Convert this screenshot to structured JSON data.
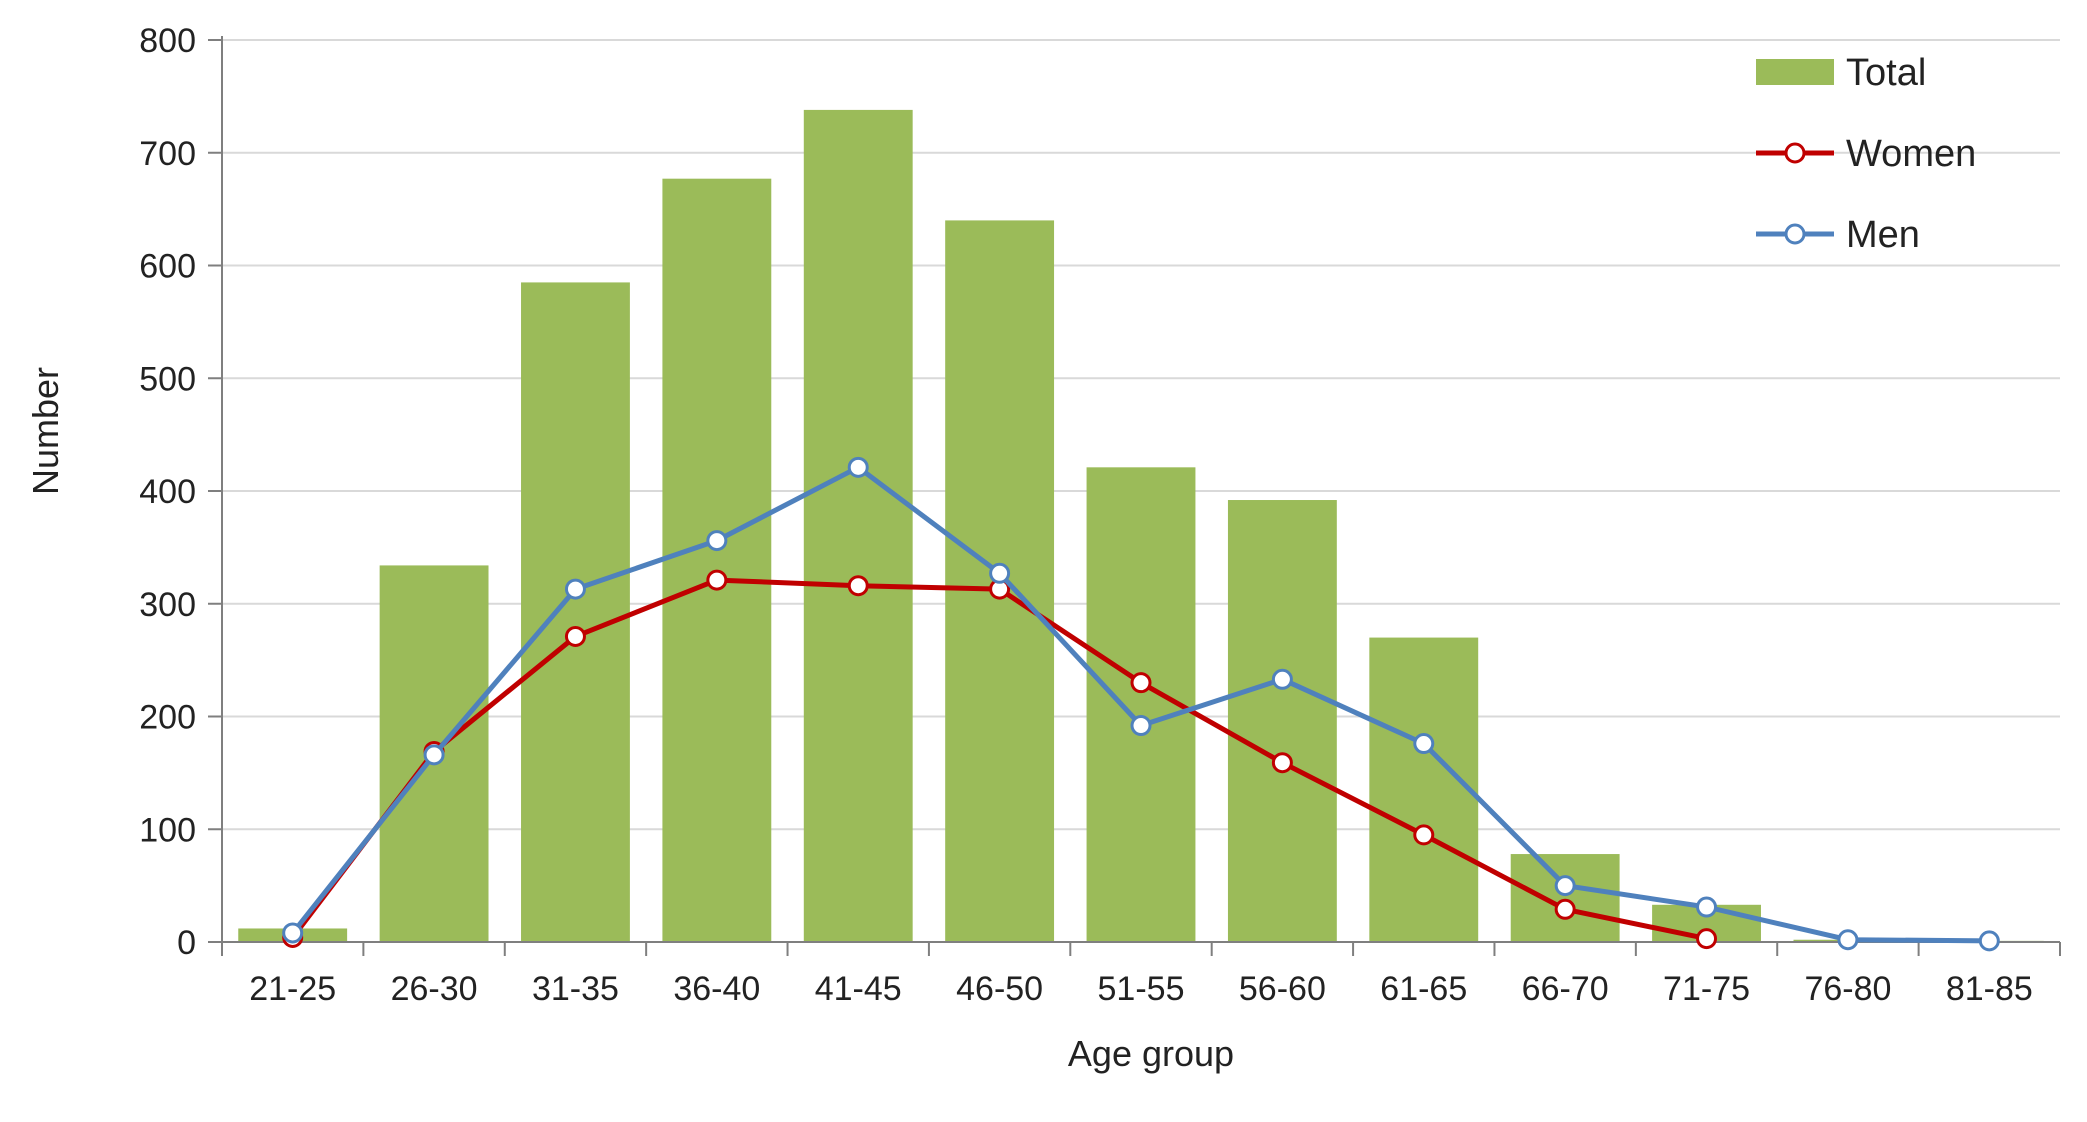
{
  "chart_data": {
    "type": "bar",
    "title": "",
    "xlabel": "Age group",
    "ylabel": "Number",
    "ylim": [
      0,
      800
    ],
    "yticks": [
      0,
      100,
      200,
      300,
      400,
      500,
      600,
      700,
      800
    ],
    "grid": "horizontal",
    "legend_position": "top-right",
    "categories": [
      "21-25",
      "26-30",
      "31-35",
      "36-40",
      "41-45",
      "46-50",
      "51-55",
      "56-60",
      "61-65",
      "66-70",
      "71-75",
      "76-80",
      "81-85"
    ],
    "series": [
      {
        "name": "Total",
        "type": "bar",
        "color": "#9bbb59",
        "values": [
          12,
          334,
          585,
          677,
          738,
          640,
          421,
          392,
          270,
          78,
          33,
          2,
          1
        ]
      },
      {
        "name": "Women",
        "type": "line",
        "color": "#c00000",
        "values": [
          4,
          169,
          271,
          321,
          316,
          313,
          230,
          159,
          95,
          29,
          3,
          null,
          null
        ]
      },
      {
        "name": "Men",
        "type": "line",
        "color": "#4f81bd",
        "values": [
          8,
          166,
          313,
          356,
          421,
          327,
          192,
          233,
          176,
          50,
          31,
          2,
          1
        ]
      }
    ]
  }
}
